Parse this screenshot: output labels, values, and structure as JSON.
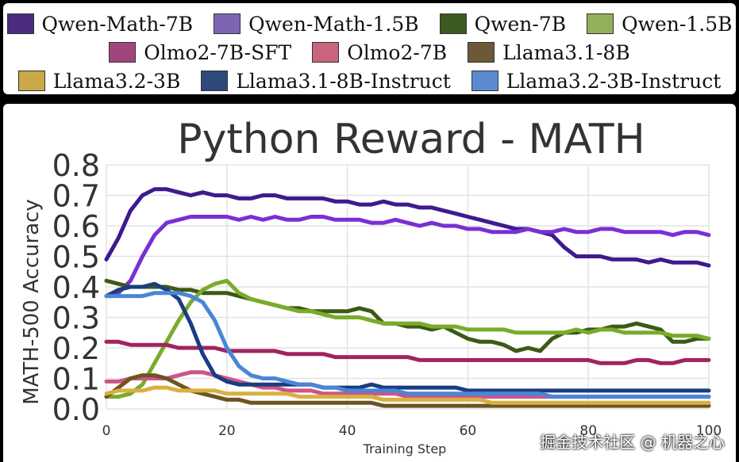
{
  "legend": [
    {
      "label": "Qwen-Math-7B",
      "color": "#4a2c7e"
    },
    {
      "label": "Qwen-Math-1.5B",
      "color": "#7d65b3"
    },
    {
      "label": "Qwen-7B",
      "color": "#3d5a22"
    },
    {
      "label": "Qwen-1.5B",
      "color": "#92b05a"
    },
    {
      "label": "Olmo2-7B-SFT",
      "color": "#a3457d"
    },
    {
      "label": "Olmo2-7B",
      "color": "#c9647d"
    },
    {
      "label": "Llama3.1-8B",
      "color": "#6b5a35"
    },
    {
      "label": "Llama3.2-3B",
      "color": "#c9a848"
    },
    {
      "label": "Llama3.1-8B-Instruct",
      "color": "#2d4a7a"
    },
    {
      "label": "Llama3.2-3B-Instruct",
      "color": "#5b8ad1"
    }
  ],
  "watermark": "掘金技术社区 @ 机器之心",
  "chart_data": {
    "type": "line",
    "title": "Python Reward - MATH",
    "xlabel": "Training Step",
    "ylabel": "MATH-500 Accuracy",
    "xlim": [
      0,
      100
    ],
    "ylim": [
      0,
      0.8
    ],
    "xticks": [
      "0",
      "20",
      "40",
      "60",
      "80",
      "100"
    ],
    "yticks": [
      "0.0",
      "0.1",
      "0.2",
      "0.3",
      "0.4",
      "0.5",
      "0.6",
      "0.7",
      "0.8"
    ],
    "grid": true,
    "x": [
      0,
      2,
      4,
      6,
      8,
      10,
      12,
      14,
      16,
      18,
      20,
      22,
      24,
      26,
      28,
      30,
      32,
      34,
      36,
      38,
      40,
      42,
      44,
      46,
      48,
      50,
      52,
      54,
      56,
      58,
      60,
      62,
      64,
      66,
      68,
      70,
      72,
      74,
      76,
      78,
      80,
      82,
      84,
      86,
      88,
      90,
      92,
      94,
      96,
      98,
      100
    ],
    "series": [
      {
        "name": "Qwen-Math-7B",
        "color": "#3f1a8f",
        "values": [
          0.49,
          0.56,
          0.65,
          0.7,
          0.72,
          0.72,
          0.71,
          0.7,
          0.71,
          0.7,
          0.7,
          0.69,
          0.69,
          0.7,
          0.7,
          0.69,
          0.69,
          0.69,
          0.69,
          0.68,
          0.68,
          0.67,
          0.67,
          0.68,
          0.67,
          0.67,
          0.66,
          0.66,
          0.65,
          0.64,
          0.63,
          0.62,
          0.61,
          0.6,
          0.59,
          0.59,
          0.58,
          0.57,
          0.53,
          0.5,
          0.5,
          0.5,
          0.49,
          0.49,
          0.49,
          0.48,
          0.49,
          0.48,
          0.48,
          0.48,
          0.47
        ]
      },
      {
        "name": "Qwen-Math-1.5B",
        "color": "#7a2fd6",
        "values": [
          0.37,
          0.38,
          0.42,
          0.5,
          0.57,
          0.61,
          0.62,
          0.63,
          0.63,
          0.63,
          0.63,
          0.62,
          0.63,
          0.62,
          0.63,
          0.62,
          0.62,
          0.63,
          0.63,
          0.62,
          0.62,
          0.62,
          0.61,
          0.61,
          0.62,
          0.61,
          0.6,
          0.61,
          0.6,
          0.6,
          0.59,
          0.59,
          0.58,
          0.58,
          0.58,
          0.59,
          0.58,
          0.58,
          0.59,
          0.58,
          0.58,
          0.59,
          0.59,
          0.58,
          0.58,
          0.58,
          0.58,
          0.57,
          0.58,
          0.58,
          0.57
        ]
      },
      {
        "name": "Qwen-7B",
        "color": "#3c5a14",
        "values": [
          0.42,
          0.41,
          0.4,
          0.4,
          0.4,
          0.4,
          0.39,
          0.39,
          0.38,
          0.38,
          0.38,
          0.37,
          0.36,
          0.35,
          0.34,
          0.33,
          0.33,
          0.32,
          0.32,
          0.32,
          0.32,
          0.33,
          0.32,
          0.28,
          0.28,
          0.27,
          0.27,
          0.26,
          0.27,
          0.25,
          0.23,
          0.22,
          0.22,
          0.21,
          0.19,
          0.2,
          0.19,
          0.23,
          0.25,
          0.25,
          0.26,
          0.26,
          0.27,
          0.27,
          0.28,
          0.27,
          0.26,
          0.22,
          0.22,
          0.23,
          0.23
        ]
      },
      {
        "name": "Qwen-1.5B",
        "color": "#7aab2a",
        "values": [
          0.04,
          0.04,
          0.05,
          0.08,
          0.15,
          0.22,
          0.29,
          0.35,
          0.39,
          0.41,
          0.42,
          0.38,
          0.36,
          0.35,
          0.34,
          0.33,
          0.32,
          0.32,
          0.31,
          0.3,
          0.3,
          0.3,
          0.29,
          0.28,
          0.28,
          0.28,
          0.28,
          0.27,
          0.27,
          0.27,
          0.26,
          0.26,
          0.26,
          0.26,
          0.25,
          0.25,
          0.25,
          0.25,
          0.25,
          0.26,
          0.25,
          0.26,
          0.26,
          0.25,
          0.25,
          0.25,
          0.25,
          0.24,
          0.24,
          0.24,
          0.23
        ]
      },
      {
        "name": "Olmo2-7B-SFT",
        "color": "#a0245e",
        "values": [
          0.22,
          0.22,
          0.21,
          0.21,
          0.21,
          0.21,
          0.2,
          0.2,
          0.2,
          0.2,
          0.19,
          0.19,
          0.19,
          0.19,
          0.19,
          0.18,
          0.18,
          0.18,
          0.18,
          0.17,
          0.17,
          0.17,
          0.17,
          0.17,
          0.17,
          0.17,
          0.16,
          0.16,
          0.16,
          0.16,
          0.16,
          0.16,
          0.16,
          0.16,
          0.16,
          0.16,
          0.16,
          0.16,
          0.16,
          0.16,
          0.16,
          0.15,
          0.15,
          0.15,
          0.16,
          0.16,
          0.15,
          0.15,
          0.16,
          0.16,
          0.16
        ]
      },
      {
        "name": "Olmo2-7B",
        "color": "#cc5587",
        "values": [
          0.09,
          0.09,
          0.1,
          0.1,
          0.1,
          0.1,
          0.11,
          0.12,
          0.12,
          0.11,
          0.1,
          0.09,
          0.08,
          0.07,
          0.07,
          0.06,
          0.06,
          0.06,
          0.05,
          0.05,
          0.05,
          0.05,
          0.05,
          0.05,
          0.05,
          0.04,
          0.04,
          0.04,
          0.04,
          0.04,
          0.04,
          0.04,
          0.04,
          0.04,
          0.04,
          0.04,
          0.04,
          0.04,
          0.04,
          0.04,
          0.04,
          0.04,
          0.04,
          0.04,
          0.04,
          0.04,
          0.04,
          0.04,
          0.04,
          0.04,
          0.04
        ]
      },
      {
        "name": "Llama3.1-8B",
        "color": "#6b5520",
        "values": [
          0.04,
          0.07,
          0.1,
          0.11,
          0.11,
          0.1,
          0.08,
          0.06,
          0.05,
          0.04,
          0.03,
          0.03,
          0.02,
          0.02,
          0.02,
          0.02,
          0.02,
          0.02,
          0.02,
          0.02,
          0.02,
          0.02,
          0.02,
          0.01,
          0.01,
          0.01,
          0.01,
          0.01,
          0.01,
          0.01,
          0.01,
          0.01,
          0.01,
          0.01,
          0.01,
          0.01,
          0.01,
          0.01,
          0.01,
          0.01,
          0.01,
          0.01,
          0.01,
          0.01,
          0.01,
          0.01,
          0.01,
          0.01,
          0.01,
          0.01,
          0.01
        ]
      },
      {
        "name": "Llama3.2-3B",
        "color": "#d9b040",
        "values": [
          0.05,
          0.06,
          0.06,
          0.06,
          0.07,
          0.07,
          0.06,
          0.06,
          0.06,
          0.06,
          0.05,
          0.05,
          0.05,
          0.05,
          0.05,
          0.05,
          0.04,
          0.04,
          0.04,
          0.04,
          0.04,
          0.04,
          0.04,
          0.03,
          0.03,
          0.03,
          0.03,
          0.03,
          0.03,
          0.03,
          0.03,
          0.03,
          0.02,
          0.02,
          0.02,
          0.02,
          0.02,
          0.02,
          0.02,
          0.02,
          0.02,
          0.02,
          0.02,
          0.02,
          0.02,
          0.02,
          0.02,
          0.02,
          0.02,
          0.02,
          0.02
        ]
      },
      {
        "name": "Llama3.1-8B-Instruct",
        "color": "#1a3d80",
        "values": [
          0.37,
          0.39,
          0.4,
          0.4,
          0.41,
          0.39,
          0.36,
          0.28,
          0.18,
          0.11,
          0.09,
          0.08,
          0.08,
          0.08,
          0.08,
          0.08,
          0.08,
          0.08,
          0.07,
          0.07,
          0.07,
          0.07,
          0.08,
          0.07,
          0.07,
          0.07,
          0.07,
          0.07,
          0.07,
          0.07,
          0.06,
          0.06,
          0.06,
          0.06,
          0.06,
          0.06,
          0.06,
          0.06,
          0.06,
          0.06,
          0.06,
          0.06,
          0.06,
          0.06,
          0.06,
          0.06,
          0.06,
          0.06,
          0.06,
          0.06,
          0.06
        ]
      },
      {
        "name": "Llama3.2-3B-Instruct",
        "color": "#4a86d6",
        "values": [
          0.37,
          0.37,
          0.37,
          0.37,
          0.38,
          0.38,
          0.38,
          0.37,
          0.35,
          0.29,
          0.2,
          0.14,
          0.11,
          0.1,
          0.1,
          0.09,
          0.08,
          0.08,
          0.07,
          0.07,
          0.06,
          0.06,
          0.06,
          0.06,
          0.06,
          0.05,
          0.05,
          0.05,
          0.05,
          0.05,
          0.05,
          0.05,
          0.05,
          0.05,
          0.05,
          0.05,
          0.05,
          0.04,
          0.04,
          0.04,
          0.04,
          0.04,
          0.04,
          0.04,
          0.04,
          0.04,
          0.04,
          0.04,
          0.04,
          0.04,
          0.04
        ]
      }
    ]
  }
}
